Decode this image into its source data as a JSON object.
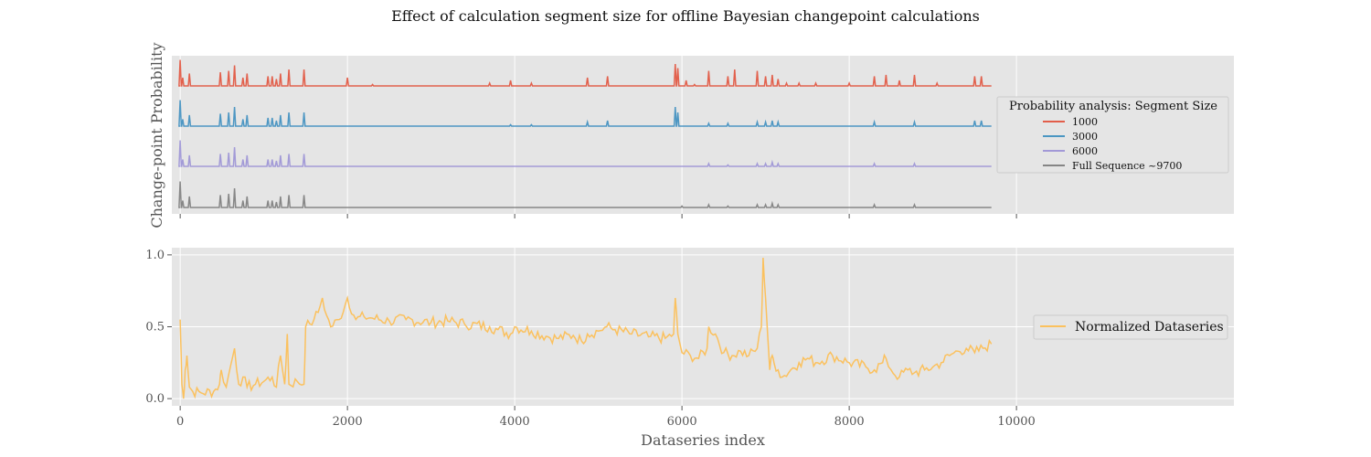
{
  "chart_data": [
    {
      "type": "line",
      "title": "Effect of calculation segment size for offline Bayesian changepoint calculations",
      "ylabel": "Change-point Probability",
      "xlim": [
        -100,
        12600
      ],
      "xticks": [
        0,
        2000,
        4000,
        6000,
        8000,
        10000
      ],
      "grid": true,
      "legend_title": "Probability analysis: Segment Size",
      "legend_position": "right",
      "spikes_note": "",
      "series": [
        {
          "name": "1000",
          "color": "#e24a33",
          "spikes": [
            [
              0,
              0.95
            ],
            [
              30,
              0.3
            ],
            [
              110,
              0.45
            ],
            [
              480,
              0.5
            ],
            [
              580,
              0.55
            ],
            [
              650,
              0.75
            ],
            [
              750,
              0.3
            ],
            [
              800,
              0.45
            ],
            [
              1050,
              0.35
            ],
            [
              1100,
              0.35
            ],
            [
              1150,
              0.25
            ],
            [
              1200,
              0.45
            ],
            [
              1300,
              0.6
            ],
            [
              1480,
              0.6
            ],
            [
              2000,
              0.3
            ],
            [
              2300,
              0.05
            ],
            [
              3700,
              0.1
            ],
            [
              3950,
              0.2
            ],
            [
              4200,
              0.1
            ],
            [
              4870,
              0.3
            ],
            [
              5110,
              0.35
            ],
            [
              5920,
              0.8
            ],
            [
              5950,
              0.65
            ],
            [
              6050,
              0.2
            ],
            [
              6150,
              0.05
            ],
            [
              6320,
              0.55
            ],
            [
              6550,
              0.35
            ],
            [
              6630,
              0.6
            ],
            [
              6900,
              0.55
            ],
            [
              7000,
              0.35
            ],
            [
              7080,
              0.4
            ],
            [
              7150,
              0.25
            ],
            [
              7250,
              0.1
            ],
            [
              7400,
              0.1
            ],
            [
              7600,
              0.1
            ],
            [
              8000,
              0.1
            ],
            [
              8300,
              0.35
            ],
            [
              8440,
              0.4
            ],
            [
              8600,
              0.2
            ],
            [
              8780,
              0.4
            ],
            [
              9050,
              0.1
            ],
            [
              9500,
              0.35
            ],
            [
              9580,
              0.35
            ]
          ]
        },
        {
          "name": "3000",
          "color": "#348abd",
          "spikes": [
            [
              0,
              0.95
            ],
            [
              30,
              0.25
            ],
            [
              110,
              0.4
            ],
            [
              480,
              0.45
            ],
            [
              580,
              0.5
            ],
            [
              650,
              0.7
            ],
            [
              750,
              0.25
            ],
            [
              800,
              0.4
            ],
            [
              1050,
              0.3
            ],
            [
              1100,
              0.3
            ],
            [
              1150,
              0.2
            ],
            [
              1200,
              0.4
            ],
            [
              1300,
              0.5
            ],
            [
              1480,
              0.5
            ],
            [
              3950,
              0.05
            ],
            [
              4200,
              0.05
            ],
            [
              4870,
              0.15
            ],
            [
              5110,
              0.2
            ],
            [
              5920,
              0.7
            ],
            [
              5950,
              0.5
            ],
            [
              6320,
              0.1
            ],
            [
              6550,
              0.1
            ],
            [
              6900,
              0.15
            ],
            [
              7000,
              0.15
            ],
            [
              7080,
              0.2
            ],
            [
              7150,
              0.15
            ],
            [
              8300,
              0.15
            ],
            [
              8780,
              0.15
            ],
            [
              9500,
              0.2
            ],
            [
              9580,
              0.2
            ]
          ]
        },
        {
          "name": "6000",
          "color": "#988ed5",
          "spikes": [
            [
              0,
              0.95
            ],
            [
              30,
              0.25
            ],
            [
              110,
              0.4
            ],
            [
              480,
              0.45
            ],
            [
              580,
              0.5
            ],
            [
              650,
              0.7
            ],
            [
              750,
              0.25
            ],
            [
              800,
              0.4
            ],
            [
              1050,
              0.25
            ],
            [
              1100,
              0.25
            ],
            [
              1150,
              0.2
            ],
            [
              1200,
              0.4
            ],
            [
              1300,
              0.45
            ],
            [
              1480,
              0.45
            ],
            [
              6320,
              0.1
            ],
            [
              6550,
              0.05
            ],
            [
              6900,
              0.1
            ],
            [
              7000,
              0.1
            ],
            [
              7080,
              0.15
            ],
            [
              7150,
              0.1
            ],
            [
              8300,
              0.1
            ],
            [
              8780,
              0.1
            ]
          ]
        },
        {
          "name": "Full Sequence ~9700",
          "color": "#777777",
          "spikes": [
            [
              0,
              0.95
            ],
            [
              30,
              0.25
            ],
            [
              110,
              0.4
            ],
            [
              480,
              0.45
            ],
            [
              580,
              0.5
            ],
            [
              650,
              0.7
            ],
            [
              750,
              0.25
            ],
            [
              800,
              0.4
            ],
            [
              1050,
              0.25
            ],
            [
              1100,
              0.25
            ],
            [
              1150,
              0.2
            ],
            [
              1200,
              0.4
            ],
            [
              1300,
              0.45
            ],
            [
              1480,
              0.45
            ],
            [
              6000,
              0.05
            ],
            [
              6320,
              0.1
            ],
            [
              6550,
              0.05
            ],
            [
              6900,
              0.1
            ],
            [
              7000,
              0.1
            ],
            [
              7080,
              0.15
            ],
            [
              7150,
              0.1
            ],
            [
              8300,
              0.1
            ],
            [
              8780,
              0.1
            ]
          ]
        }
      ]
    },
    {
      "type": "line",
      "xlabel": "Dataseries index",
      "xlim": [
        -100,
        12600
      ],
      "ylim": [
        -0.05,
        1.05
      ],
      "xticks": [
        0,
        2000,
        4000,
        6000,
        8000,
        10000
      ],
      "yticks": [
        0.0,
        0.5,
        1.0
      ],
      "ytick_labels": [
        "0.0",
        "0.5",
        "1.0"
      ],
      "grid": true,
      "legend_position": "right",
      "series": [
        {
          "name": "Normalized Dataseries",
          "color": "#fbc15e",
          "x": [
            0,
            20,
            40,
            60,
            80,
            110,
            150,
            250,
            400,
            470,
            490,
            550,
            600,
            650,
            700,
            750,
            800,
            900,
            1000,
            1100,
            1150,
            1200,
            1250,
            1280,
            1300,
            1400,
            1480,
            1500,
            1550,
            1600,
            1650,
            1700,
            1750,
            1800,
            1900,
            2000,
            2100,
            2200,
            2300,
            2500,
            2700,
            3000,
            3200,
            3400,
            3700,
            3800,
            3950,
            4000,
            4200,
            4400,
            4500,
            4700,
            4800,
            4870,
            5000,
            5100,
            5200,
            5400,
            5600,
            5800,
            5900,
            5920,
            5950,
            6000,
            6100,
            6200,
            6300,
            6320,
            6400,
            6500,
            6600,
            6700,
            6800,
            6900,
            6950,
            6970,
            7000,
            7050,
            7080,
            7100,
            7150,
            7200,
            7300,
            7400,
            7500,
            7600,
            7800,
            8000,
            8200,
            8300,
            8400,
            8440,
            8500,
            8600,
            8700,
            8780,
            8900,
            9000,
            9100,
            9200,
            9300,
            9400,
            9500,
            9600,
            9700
          ],
          "y": [
            0.55,
            0.1,
            0.0,
            0.2,
            0.3,
            0.08,
            0.05,
            0.04,
            0.05,
            0.1,
            0.2,
            0.08,
            0.22,
            0.35,
            0.1,
            0.15,
            0.08,
            0.1,
            0.12,
            0.15,
            0.08,
            0.3,
            0.1,
            0.45,
            0.1,
            0.12,
            0.1,
            0.5,
            0.52,
            0.55,
            0.6,
            0.7,
            0.58,
            0.5,
            0.55,
            0.7,
            0.55,
            0.57,
            0.56,
            0.54,
            0.55,
            0.53,
            0.54,
            0.52,
            0.5,
            0.48,
            0.45,
            0.5,
            0.47,
            0.43,
            0.42,
            0.44,
            0.4,
            0.45,
            0.47,
            0.5,
            0.48,
            0.45,
            0.43,
            0.42,
            0.45,
            0.7,
            0.45,
            0.32,
            0.3,
            0.28,
            0.35,
            0.5,
            0.45,
            0.32,
            0.3,
            0.33,
            0.3,
            0.35,
            0.5,
            0.98,
            0.7,
            0.2,
            0.3,
            0.25,
            0.2,
            0.15,
            0.2,
            0.25,
            0.28,
            0.25,
            0.3,
            0.25,
            0.22,
            0.2,
            0.25,
            0.28,
            0.2,
            0.15,
            0.2,
            0.18,
            0.2,
            0.22,
            0.25,
            0.3,
            0.33,
            0.35,
            0.32,
            0.35,
            0.38
          ]
        }
      ]
    }
  ]
}
